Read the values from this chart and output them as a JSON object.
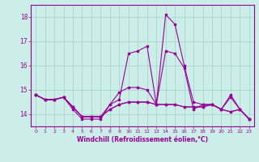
{
  "xlabel": "Windchill (Refroidissement éolien,°C)",
  "background_color": "#cceee8",
  "grid_color": "#aad4cc",
  "line_color": "#990099",
  "x": [
    0,
    1,
    2,
    3,
    4,
    5,
    6,
    7,
    8,
    9,
    10,
    11,
    12,
    13,
    14,
    15,
    16,
    17,
    18,
    19,
    20,
    21,
    22,
    23
  ],
  "series": [
    [
      14.8,
      14.6,
      14.6,
      14.7,
      14.2,
      13.8,
      13.8,
      13.8,
      14.4,
      14.9,
      15.1,
      15.1,
      15.0,
      14.4,
      16.6,
      16.5,
      15.9,
      14.2,
      14.4,
      14.4,
      14.2,
      14.8,
      14.2,
      13.8
    ],
    [
      14.8,
      14.6,
      14.6,
      14.7,
      14.3,
      13.9,
      13.9,
      13.9,
      14.2,
      14.4,
      14.5,
      14.5,
      14.5,
      14.4,
      14.4,
      14.4,
      14.3,
      14.3,
      14.3,
      14.4,
      14.2,
      14.1,
      14.2,
      13.8
    ],
    [
      14.8,
      14.6,
      14.6,
      14.7,
      14.3,
      13.9,
      13.9,
      13.9,
      14.2,
      14.4,
      14.5,
      14.5,
      14.5,
      14.4,
      14.4,
      14.4,
      14.3,
      14.3,
      14.3,
      14.4,
      14.2,
      14.1,
      14.2,
      13.8
    ],
    [
      14.8,
      14.6,
      14.6,
      14.7,
      14.3,
      13.9,
      13.9,
      13.9,
      14.4,
      14.6,
      16.5,
      16.6,
      16.8,
      14.4,
      18.1,
      17.7,
      16.0,
      14.5,
      14.4,
      14.4,
      14.2,
      14.7,
      14.2,
      13.8
    ]
  ],
  "ylim": [
    13.5,
    18.5
  ],
  "yticks": [
    14,
    15,
    16,
    17,
    18
  ],
  "xlim": [
    -0.5,
    23.5
  ],
  "xticks": [
    0,
    1,
    2,
    3,
    4,
    5,
    6,
    7,
    8,
    9,
    10,
    11,
    12,
    13,
    14,
    15,
    16,
    17,
    18,
    19,
    20,
    21,
    22,
    23
  ]
}
